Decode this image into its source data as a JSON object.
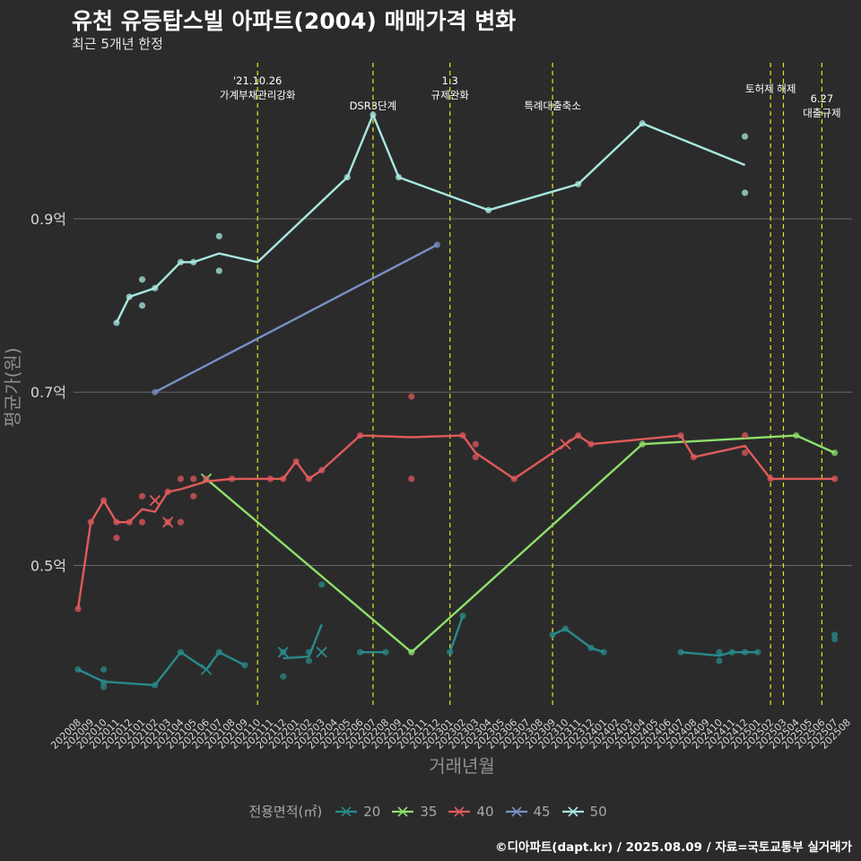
{
  "title": "유천 유등탑스빌 아파트(2004) 매매가격 변화",
  "subtitle": "최근 5개년 한정",
  "caption": "©디아파트(dapt.kr) / 2025.08.09 / 자료=국토교통부 실거래가",
  "legend_title": "전용면적(㎡)",
  "chart_data": {
    "type": "line",
    "xlabel": "거래년월",
    "ylabel": "평균가(원)",
    "x_ticks": [
      "202008",
      "202009",
      "202010",
      "202011",
      "202012",
      "202101",
      "202102",
      "202103",
      "202104",
      "202105",
      "202106",
      "202107",
      "202108",
      "202109",
      "202110",
      "202111",
      "202112",
      "202201",
      "202202",
      "202203",
      "202204",
      "202205",
      "202206",
      "202207",
      "202208",
      "202209",
      "202210",
      "202211",
      "202212",
      "202301",
      "202302",
      "202303",
      "202304",
      "202305",
      "202306",
      "202307",
      "202308",
      "202309",
      "202310",
      "202311",
      "202312",
      "202401",
      "202402",
      "202403",
      "202404",
      "202405",
      "202406",
      "202407",
      "202408",
      "202409",
      "202410",
      "202411",
      "202412",
      "202501",
      "202502",
      "202503",
      "202504",
      "202505",
      "202506",
      "202507",
      "202508"
    ],
    "y_ticks": [
      {
        "value": 0.5,
        "label": "0.5억"
      },
      {
        "value": 0.7,
        "label": "0.7억"
      },
      {
        "value": 0.9,
        "label": "0.9억"
      }
    ],
    "ylim": [
      0.335,
      1.08
    ],
    "grid": true,
    "legend_position": "bottom",
    "events": [
      {
        "x": "202110",
        "label": "'21.10.26\n가계부채관리강화",
        "row": 0
      },
      {
        "x": "202207",
        "label": "DSR3단계",
        "row": 1
      },
      {
        "x": "202301",
        "label": "1.3\n규제완화",
        "row": 0
      },
      {
        "x": "202309",
        "label": "특례대출축소",
        "row": 1
      },
      {
        "x": "202502",
        "label": "토허제 해제",
        "row": 0
      },
      {
        "x": "202503",
        "label": "",
        "row": 0
      },
      {
        "x": "202506",
        "label": "6.27\n대출규제",
        "row": 2
      }
    ],
    "series": [
      {
        "name": "20",
        "color": "#2a8a8a",
        "line": [
          [
            "202008",
            0.38
          ],
          [
            "202010",
            0.366
          ],
          [
            "202102",
            0.362
          ],
          [
            "202104",
            0.4
          ],
          [
            "202106",
            0.38
          ],
          [
            "202107",
            0.4
          ],
          [
            "202109",
            0.385
          ]
        ],
        "line2": [
          [
            "202112",
            0.393
          ],
          [
            "202202",
            0.395
          ],
          [
            "202203",
            0.432
          ]
        ],
        "line3": [
          [
            "202206",
            0.4
          ],
          [
            "202208",
            0.4
          ]
        ],
        "line4": [
          [
            "202301",
            0.4
          ],
          [
            "202302",
            0.442
          ]
        ],
        "line5": [
          [
            "202309",
            0.42
          ],
          [
            "202310",
            0.427
          ],
          [
            "202312",
            0.405
          ],
          [
            "202401",
            0.4
          ]
        ],
        "line6": [
          [
            "202407",
            0.4
          ],
          [
            "202410",
            0.396
          ],
          [
            "202411",
            0.4
          ],
          [
            "202412",
            0.4
          ],
          [
            "202501",
            0.4
          ]
        ],
        "points": [
          [
            "202008",
            0.38
          ],
          [
            "202010",
            0.38
          ],
          [
            "202010",
            0.36
          ],
          [
            "202010",
            0.365
          ],
          [
            "202102",
            0.362
          ],
          [
            "202104",
            0.4
          ],
          [
            "202107",
            0.4
          ],
          [
            "202109",
            0.385
          ],
          [
            "202112",
            0.4
          ],
          [
            "202112",
            0.372
          ],
          [
            "202202",
            0.39
          ],
          [
            "202202",
            0.4
          ],
          [
            "202203",
            0.478
          ],
          [
            "202206",
            0.4
          ],
          [
            "202208",
            0.4
          ],
          [
            "202301",
            0.4
          ],
          [
            "202302",
            0.442
          ],
          [
            "202309",
            0.42
          ],
          [
            "202310",
            0.427
          ],
          [
            "202312",
            0.405
          ],
          [
            "202401",
            0.4
          ],
          [
            "202407",
            0.4
          ],
          [
            "202410",
            0.4
          ],
          [
            "202410",
            0.39
          ],
          [
            "202411",
            0.4
          ],
          [
            "202412",
            0.4
          ],
          [
            "202501",
            0.4
          ],
          [
            "202507",
            0.42
          ],
          [
            "202507",
            0.415
          ]
        ],
        "crosses": [
          [
            "202106",
            0.38
          ],
          [
            "202112",
            0.4
          ],
          [
            "202203",
            0.4
          ]
        ]
      },
      {
        "name": "35",
        "color": "#8ee06a",
        "line": [
          [
            "202106",
            0.6
          ],
          [
            "202210",
            0.4
          ],
          [
            "202404",
            0.64
          ],
          [
            "202504",
            0.65
          ],
          [
            "202507",
            0.63
          ]
        ],
        "points": [
          [
            "202210",
            0.4
          ],
          [
            "202404",
            0.64
          ],
          [
            "202504",
            0.65
          ],
          [
            "202507",
            0.63
          ]
        ],
        "crosses": [
          [
            "202106",
            0.6
          ]
        ]
      },
      {
        "name": "40",
        "color": "#e05a5a",
        "line": [
          [
            "202008",
            0.45
          ],
          [
            "202009",
            0.55
          ],
          [
            "202010",
            0.575
          ],
          [
            "202011",
            0.55
          ],
          [
            "202012",
            0.55
          ],
          [
            "202101",
            0.565
          ],
          [
            "202102",
            0.562
          ],
          [
            "202103",
            0.585
          ],
          [
            "202104",
            0.588
          ],
          [
            "202106",
            0.597
          ],
          [
            "202108",
            0.6
          ],
          [
            "202110",
            0.6
          ],
          [
            "202112",
            0.6
          ],
          [
            "202201",
            0.62
          ],
          [
            "202202",
            0.6
          ],
          [
            "202203",
            0.61
          ],
          [
            "202206",
            0.65
          ],
          [
            "202210",
            0.648
          ],
          [
            "202302",
            0.65
          ],
          [
            "202303",
            0.63
          ],
          [
            "202306",
            0.6
          ],
          [
            "202310",
            0.64
          ],
          [
            "202311",
            0.65
          ],
          [
            "202312",
            0.64
          ],
          [
            "202407",
            0.65
          ],
          [
            "202408",
            0.625
          ],
          [
            "202412",
            0.638
          ],
          [
            "202502",
            0.6
          ],
          [
            "202507",
            0.6
          ]
        ],
        "points": [
          [
            "202008",
            0.45
          ],
          [
            "202009",
            0.55
          ],
          [
            "202010",
            0.575
          ],
          [
            "202011",
            0.55
          ],
          [
            "202011",
            0.532
          ],
          [
            "202012",
            0.55
          ],
          [
            "202101",
            0.58
          ],
          [
            "202101",
            0.55
          ],
          [
            "202103",
            0.55
          ],
          [
            "202103",
            0.585
          ],
          [
            "202104",
            0.6
          ],
          [
            "202104",
            0.55
          ],
          [
            "202105",
            0.6
          ],
          [
            "202105",
            0.58
          ],
          [
            "202106",
            0.6
          ],
          [
            "202108",
            0.6
          ],
          [
            "202111",
            0.6
          ],
          [
            "202112",
            0.6
          ],
          [
            "202201",
            0.62
          ],
          [
            "202202",
            0.6
          ],
          [
            "202203",
            0.61
          ],
          [
            "202206",
            0.65
          ],
          [
            "202210",
            0.695
          ],
          [
            "202210",
            0.6
          ],
          [
            "202302",
            0.65
          ],
          [
            "202303",
            0.64
          ],
          [
            "202303",
            0.625
          ],
          [
            "202306",
            0.6
          ],
          [
            "202311",
            0.65
          ],
          [
            "202312",
            0.64
          ],
          [
            "202407",
            0.65
          ],
          [
            "202408",
            0.625
          ],
          [
            "202412",
            0.65
          ],
          [
            "202412",
            0.63
          ],
          [
            "202502",
            0.6
          ],
          [
            "202507",
            0.6
          ]
        ],
        "crosses": [
          [
            "202102",
            0.575
          ],
          [
            "202103",
            0.55
          ],
          [
            "202310",
            0.64
          ]
        ]
      },
      {
        "name": "45",
        "color": "#7a8fc4",
        "line": [
          [
            "202102",
            0.7
          ],
          [
            "202212",
            0.87
          ]
        ],
        "points": [
          [
            "202102",
            0.7
          ],
          [
            "202212",
            0.87
          ]
        ],
        "crosses": []
      },
      {
        "name": "50",
        "color": "#a8e8e0",
        "line": [
          [
            "202011",
            0.78
          ],
          [
            "202012",
            0.81
          ],
          [
            "202102",
            0.82
          ],
          [
            "202104",
            0.85
          ],
          [
            "202105",
            0.85
          ],
          [
            "202107",
            0.86
          ],
          [
            "202110",
            0.85
          ],
          [
            "202205",
            0.948
          ],
          [
            "202207",
            1.02
          ],
          [
            "202209",
            0.948
          ],
          [
            "202304",
            0.91
          ],
          [
            "202311",
            0.94
          ],
          [
            "202404",
            1.01
          ],
          [
            "202412",
            0.962
          ]
        ],
        "points": [
          [
            "202011",
            0.78
          ],
          [
            "202012",
            0.81
          ],
          [
            "202101",
            0.83
          ],
          [
            "202101",
            0.8
          ],
          [
            "202102",
            0.82
          ],
          [
            "202104",
            0.85
          ],
          [
            "202105",
            0.85
          ],
          [
            "202107",
            0.88
          ],
          [
            "202107",
            0.84
          ],
          [
            "202205",
            0.948
          ],
          [
            "202207",
            1.02
          ],
          [
            "202209",
            0.948
          ],
          [
            "202304",
            0.91
          ],
          [
            "202311",
            0.94
          ],
          [
            "202404",
            1.01
          ],
          [
            "202412",
            0.995
          ],
          [
            "202412",
            0.93
          ]
        ],
        "crosses": []
      }
    ]
  }
}
